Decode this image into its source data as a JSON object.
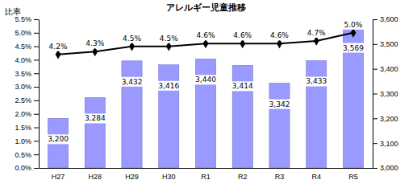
{
  "chart_data": {
    "type": "bar",
    "title": "アレルギー児童推移",
    "y_label": "比率",
    "categories": [
      "H27",
      "H28",
      "H29",
      "H30",
      "R1",
      "R2",
      "R3",
      "R4",
      "R5"
    ],
    "series": [
      {
        "type": "bar",
        "axis": "y2",
        "color": "#9999ff",
        "values": [
          3200,
          3284,
          3432,
          3416,
          3440,
          3414,
          3342,
          3433,
          3569
        ],
        "value_labels": [
          "3,200",
          "3,284",
          "3,432",
          "3,416",
          "3,440",
          "3,414",
          "3,342",
          "3,433",
          "3,569"
        ]
      },
      {
        "type": "line",
        "color": "#000000",
        "marker": "diamond",
        "values": [
          4.2,
          4.3,
          4.5,
          4.5,
          4.6,
          4.6,
          4.6,
          4.7,
          5.0
        ],
        "value_labels": [
          "4.2%",
          "4.3%",
          "4.5%",
          "4.5%",
          "4.6%",
          "4.6%",
          "4.6%",
          "4.7%",
          "5.0%"
        ]
      }
    ],
    "data_labels": true,
    "ylim": [
      0,
      5.5
    ],
    "yticks": [
      {
        "value": 0,
        "label": "0.0%"
      },
      {
        "value": 0.5,
        "label": "0.5%"
      },
      {
        "value": 1,
        "label": "1.0%"
      },
      {
        "value": 1.5,
        "label": "1.5%"
      },
      {
        "value": 2,
        "label": "2.0%"
      },
      {
        "value": 2.5,
        "label": "2.5%"
      },
      {
        "value": 3,
        "label": "3.0%"
      },
      {
        "value": 3.5,
        "label": "3.5%"
      },
      {
        "value": 4,
        "label": "4.0%"
      },
      {
        "value": 4.5,
        "label": "4.5%"
      },
      {
        "value": 5,
        "label": "5.0%"
      },
      {
        "value": 5.5,
        "label": "5.5%"
      }
    ],
    "y2lim": [
      3000,
      3600
    ],
    "y2ticks": [
      {
        "value": 3000,
        "label": "3,000"
      },
      {
        "value": 3100,
        "label": "3,100"
      },
      {
        "value": 3200,
        "label": "3,200"
      },
      {
        "value": 3300,
        "label": "3,300"
      },
      {
        "value": 3400,
        "label": "3,400"
      },
      {
        "value": 3500,
        "label": "3,500"
      },
      {
        "value": 3600,
        "label": "3,600"
      }
    ]
  }
}
